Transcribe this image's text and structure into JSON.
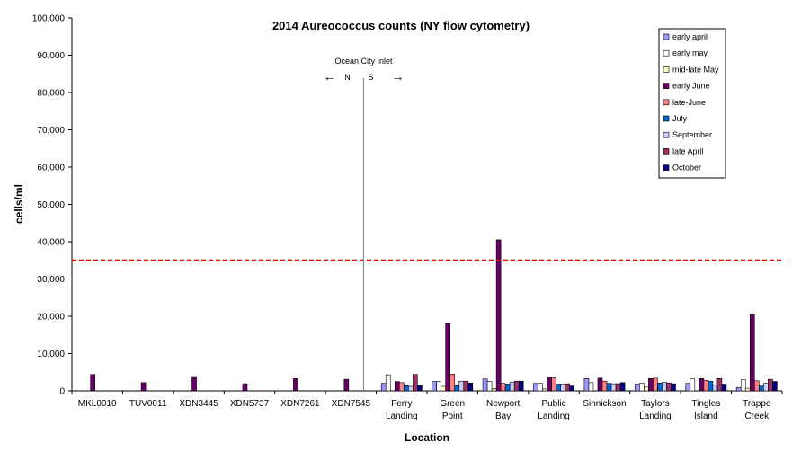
{
  "chart_data": {
    "type": "bar",
    "title": "2014 Aureococcus counts (NY flow cytometry)",
    "xlabel": "Location",
    "ylabel": "cells/ml",
    "ylim": [
      0,
      100000
    ],
    "yticks": [
      0,
      10000,
      20000,
      30000,
      40000,
      50000,
      60000,
      70000,
      80000,
      90000,
      100000
    ],
    "ytick_labels": [
      "0",
      "10,000",
      "20,000",
      "30,000",
      "40,000",
      "50,000",
      "60,000",
      "70,000",
      "80,000",
      "90,000",
      "100,000"
    ],
    "grid": false,
    "legend_position": "top-right",
    "categories": [
      [
        "MKL0010"
      ],
      [
        "TUV0011"
      ],
      [
        "XDN3445"
      ],
      [
        "XDN5737"
      ],
      [
        "XDN7261"
      ],
      [
        "XDN7545"
      ],
      [
        "Ferry",
        "Landing"
      ],
      [
        "Green",
        "Point"
      ],
      [
        "Newport",
        "Bay"
      ],
      [
        "Public",
        "Landing"
      ],
      [
        "Sinnickson"
      ],
      [
        "Taylors",
        "Landing"
      ],
      [
        "Tingles",
        "Island"
      ],
      [
        "Trappe",
        "Creek"
      ]
    ],
    "series": [
      {
        "name": "early april",
        "color": "#9999ff",
        "values": [
          null,
          null,
          null,
          null,
          null,
          null,
          2000,
          2500,
          3200,
          2000,
          3300,
          1800,
          2000,
          900
        ]
      },
      {
        "name": "early may",
        "color": "#ffffff",
        "values": [
          null,
          null,
          null,
          null,
          null,
          null,
          4300,
          2500,
          2500,
          2000,
          2200,
          2000,
          3200,
          3000
        ]
      },
      {
        "name": "mid-late May",
        "color": "#ffffcc",
        "values": [
          null,
          null,
          null,
          null,
          null,
          null,
          null,
          1200,
          600,
          500,
          null,
          1000,
          null,
          700
        ]
      },
      {
        "name": "early June",
        "color": "#660066",
        "values": [
          4400,
          2200,
          3600,
          1900,
          3300,
          3100,
          2500,
          18000,
          40500,
          3500,
          3400,
          3300,
          3300,
          20500
        ]
      },
      {
        "name": "late-June",
        "color": "#ff8080",
        "values": [
          null,
          null,
          null,
          null,
          null,
          null,
          2200,
          4500,
          2000,
          3500,
          2600,
          3400,
          2800,
          2700
        ]
      },
      {
        "name": "July",
        "color": "#0066cc",
        "values": [
          null,
          null,
          null,
          null,
          null,
          null,
          1400,
          1400,
          1800,
          1800,
          2000,
          2100,
          2600,
          1300
        ]
      },
      {
        "name": "September",
        "color": "#ccccff",
        "values": [
          null,
          null,
          null,
          null,
          null,
          null,
          1200,
          2600,
          2300,
          1800,
          1900,
          2300,
          1600,
          2000
        ]
      },
      {
        "name": "late April",
        "color": "#993366",
        "values": [
          null,
          null,
          null,
          null,
          null,
          null,
          4400,
          2600,
          2600,
          1900,
          1900,
          2100,
          3300,
          3100
        ]
      },
      {
        "name": "October",
        "color": "#000080",
        "values": [
          null,
          null,
          null,
          null,
          null,
          null,
          1400,
          2100,
          2600,
          1300,
          2200,
          1900,
          1800,
          2500
        ]
      }
    ],
    "threshold": {
      "value": 35000,
      "color": "#dd0000",
      "style": "dashed"
    },
    "divider": {
      "after_category": "XDN7545",
      "label": "Ocean City Inlet",
      "left_label": "N",
      "right_label": "S",
      "left_arrow": "←",
      "right_arrow": "→"
    }
  }
}
